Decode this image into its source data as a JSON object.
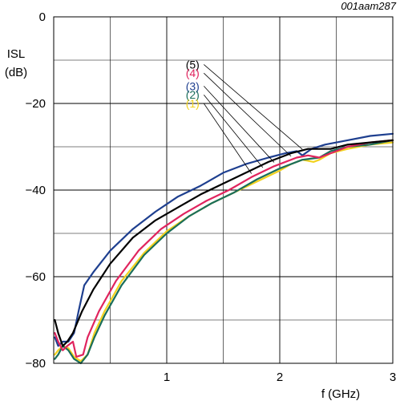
{
  "chart_data": {
    "type": "line",
    "figure_code": "001aam287",
    "ylabel_line1": "ISL",
    "ylabel_line2": "(dB)",
    "xlabel": "f (GHz)",
    "xlim": [
      0,
      3
    ],
    "ylim": [
      -80,
      0
    ],
    "xticks": [
      1,
      2,
      3
    ],
    "xtick_labels": [
      "1",
      "2",
      "3"
    ],
    "yticks": [
      0,
      -20,
      -40,
      -60,
      -80
    ],
    "ytick_labels": [
      "0",
      "−20",
      "−40",
      "−60",
      "−80"
    ],
    "grid": true,
    "series": [
      {
        "name": "(5)",
        "color": "#000000",
        "label_point": [
          1.3,
          -11
        ],
        "points": [
          [
            0.01,
            -70
          ],
          [
            0.04,
            -73
          ],
          [
            0.08,
            -76
          ],
          [
            0.12,
            -75
          ],
          [
            0.17,
            -73
          ],
          [
            0.25,
            -68
          ],
          [
            0.35,
            -63
          ],
          [
            0.5,
            -57
          ],
          [
            0.7,
            -51
          ],
          [
            0.9,
            -47
          ],
          [
            1.1,
            -44
          ],
          [
            1.3,
            -41
          ],
          [
            1.5,
            -38.5
          ],
          [
            1.7,
            -36
          ],
          [
            1.9,
            -33.5
          ],
          [
            2.1,
            -31.5
          ],
          [
            2.25,
            -30.5
          ],
          [
            2.35,
            -30.5
          ],
          [
            2.45,
            -30.5
          ],
          [
            2.6,
            -29.5
          ],
          [
            2.8,
            -29
          ],
          [
            3.0,
            -28.5
          ]
        ]
      },
      {
        "name": "(4)",
        "color": "#e0245e",
        "label_point": [
          1.3,
          -13
        ],
        "points": [
          [
            0.01,
            -73
          ],
          [
            0.04,
            -75
          ],
          [
            0.08,
            -77
          ],
          [
            0.12,
            -76
          ],
          [
            0.17,
            -75
          ],
          [
            0.2,
            -78.5
          ],
          [
            0.26,
            -78
          ],
          [
            0.3,
            -74
          ],
          [
            0.4,
            -68
          ],
          [
            0.55,
            -61
          ],
          [
            0.75,
            -54
          ],
          [
            0.95,
            -49
          ],
          [
            1.15,
            -45.5
          ],
          [
            1.35,
            -42.5
          ],
          [
            1.55,
            -40
          ],
          [
            1.75,
            -37
          ],
          [
            1.95,
            -34.5
          ],
          [
            2.15,
            -32.5
          ],
          [
            2.25,
            -32
          ],
          [
            2.35,
            -32.5
          ],
          [
            2.45,
            -31.5
          ],
          [
            2.6,
            -30
          ],
          [
            2.8,
            -29
          ],
          [
            3.0,
            -28.5
          ]
        ]
      },
      {
        "name": "(3)",
        "color": "#1e3f8f",
        "label_point": [
          1.3,
          -16
        ],
        "points": [
          [
            0.01,
            -74
          ],
          [
            0.04,
            -76
          ],
          [
            0.08,
            -75
          ],
          [
            0.13,
            -75
          ],
          [
            0.18,
            -73
          ],
          [
            0.22,
            -68
          ],
          [
            0.27,
            -62
          ],
          [
            0.35,
            -59
          ],
          [
            0.5,
            -54
          ],
          [
            0.7,
            -49
          ],
          [
            0.9,
            -45
          ],
          [
            1.1,
            -41.5
          ],
          [
            1.3,
            -39
          ],
          [
            1.5,
            -36
          ],
          [
            1.7,
            -34
          ],
          [
            1.9,
            -32.5
          ],
          [
            2.05,
            -31.5
          ],
          [
            2.15,
            -31
          ],
          [
            2.2,
            -32
          ],
          [
            2.28,
            -30.5
          ],
          [
            2.4,
            -29.5
          ],
          [
            2.6,
            -28.5
          ],
          [
            2.8,
            -27.5
          ],
          [
            3.0,
            -27
          ]
        ]
      },
      {
        "name": "(2)",
        "color": "#1a6e5a",
        "label_point": [
          1.3,
          -18
        ],
        "points": [
          [
            0.01,
            -79
          ],
          [
            0.04,
            -78
          ],
          [
            0.08,
            -76
          ],
          [
            0.13,
            -77
          ],
          [
            0.18,
            -79
          ],
          [
            0.24,
            -80
          ],
          [
            0.3,
            -78
          ],
          [
            0.36,
            -74
          ],
          [
            0.45,
            -69
          ],
          [
            0.6,
            -62
          ],
          [
            0.8,
            -55
          ],
          [
            1.0,
            -50
          ],
          [
            1.2,
            -46
          ],
          [
            1.4,
            -43
          ],
          [
            1.6,
            -40.5
          ],
          [
            1.8,
            -37.5
          ],
          [
            2.0,
            -35
          ],
          [
            2.2,
            -33
          ],
          [
            2.35,
            -32.5
          ],
          [
            2.45,
            -31
          ],
          [
            2.6,
            -30
          ],
          [
            2.8,
            -29.5
          ],
          [
            3.0,
            -28.5
          ]
        ]
      },
      {
        "name": "(1)",
        "color": "#f2d21e",
        "label_point": [
          1.3,
          -20
        ],
        "points": [
          [
            0.01,
            -78
          ],
          [
            0.04,
            -77
          ],
          [
            0.08,
            -76
          ],
          [
            0.13,
            -76.5
          ],
          [
            0.18,
            -78.5
          ],
          [
            0.24,
            -79.5
          ],
          [
            0.3,
            -78
          ],
          [
            0.36,
            -73
          ],
          [
            0.45,
            -68
          ],
          [
            0.6,
            -61
          ],
          [
            0.8,
            -54.5
          ],
          [
            1.0,
            -49.5
          ],
          [
            1.2,
            -46
          ],
          [
            1.4,
            -43
          ],
          [
            1.6,
            -40.5
          ],
          [
            1.8,
            -38
          ],
          [
            2.0,
            -35.5
          ],
          [
            2.1,
            -34
          ],
          [
            2.2,
            -33
          ],
          [
            2.3,
            -33.5
          ],
          [
            2.35,
            -33
          ],
          [
            2.45,
            -31.5
          ],
          [
            2.6,
            -30.5
          ],
          [
            2.8,
            -29.5
          ],
          [
            3.0,
            -29
          ]
        ]
      }
    ]
  }
}
